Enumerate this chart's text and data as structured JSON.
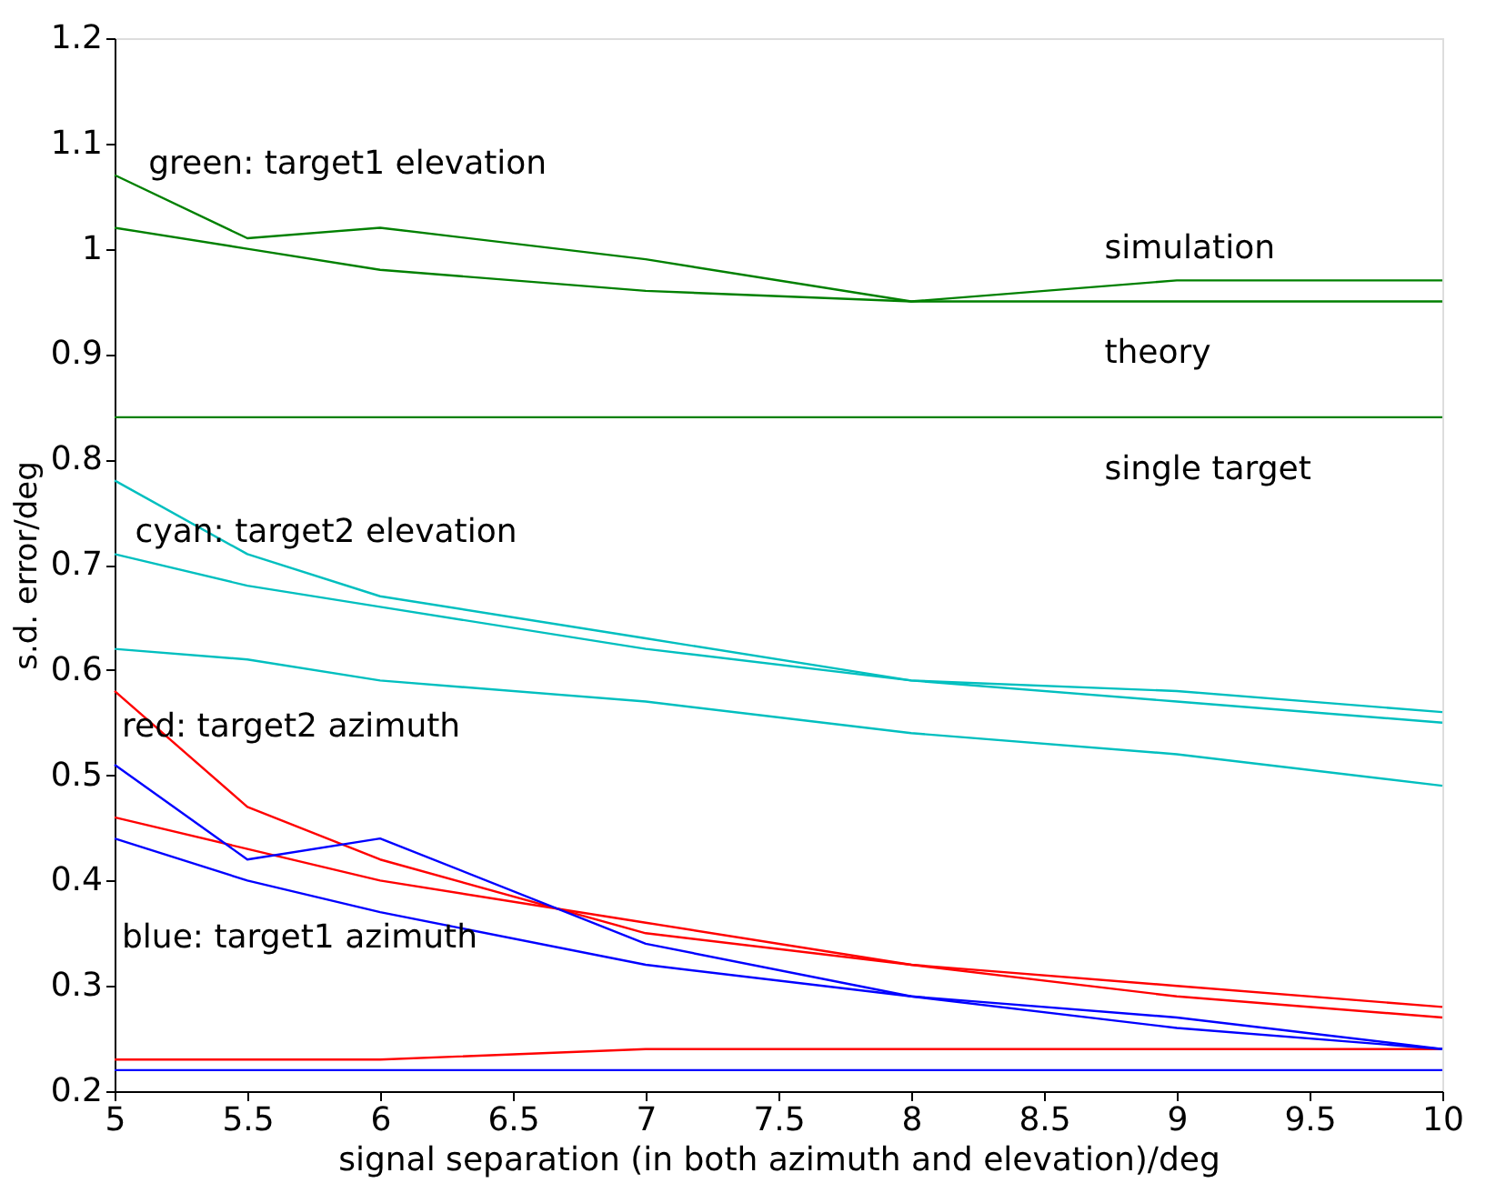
{
  "chart_data": {
    "type": "line",
    "xlabel": "signal separation (in both azimuth and elevation)/deg",
    "ylabel": "s.d. error/deg",
    "x": [
      5,
      5.5,
      6,
      7,
      8,
      9,
      10
    ],
    "series": [
      {
        "color": "#008000",
        "values": [
          1.07,
          1.01,
          1.02,
          0.99,
          0.95,
          0.97,
          0.97
        ]
      },
      {
        "color": "#008000",
        "values": [
          1.02,
          1.0,
          0.98,
          0.96,
          0.95,
          0.95,
          0.95
        ]
      },
      {
        "color": "#008000",
        "values": [
          0.84,
          0.84,
          0.84,
          0.84,
          0.84,
          0.84,
          0.84
        ]
      },
      {
        "color": "#00bfbf",
        "values": [
          0.78,
          0.71,
          0.67,
          0.63,
          0.59,
          0.58,
          0.56
        ]
      },
      {
        "color": "#00bfbf",
        "values": [
          0.71,
          0.68,
          0.66,
          0.62,
          0.59,
          0.57,
          0.55
        ]
      },
      {
        "color": "#00bfbf",
        "values": [
          0.62,
          0.61,
          0.59,
          0.57,
          0.54,
          0.52,
          0.49
        ]
      },
      {
        "color": "#ff0000",
        "values": [
          0.58,
          0.47,
          0.42,
          0.35,
          0.32,
          0.29,
          0.27
        ]
      },
      {
        "color": "#ff0000",
        "values": [
          0.46,
          0.43,
          0.4,
          0.36,
          0.32,
          0.3,
          0.28
        ]
      },
      {
        "color": "#ff0000",
        "values": [
          0.23,
          0.23,
          0.23,
          0.24,
          0.24,
          0.24,
          0.24
        ]
      },
      {
        "color": "#0000ff",
        "values": [
          0.51,
          0.42,
          0.44,
          0.34,
          0.29,
          0.27,
          0.24
        ]
      },
      {
        "color": "#0000ff",
        "values": [
          0.44,
          0.4,
          0.37,
          0.32,
          0.29,
          0.26,
          0.24
        ]
      },
      {
        "color": "#0000ff",
        "values": [
          0.22,
          0.22,
          0.22,
          0.22,
          0.22,
          0.22,
          0.22
        ]
      }
    ],
    "annotations": [
      "green: target1 elevation",
      "simulation",
      "theory",
      "single target",
      "cyan:  target2 elevation",
      "red:   target2 azimuth",
      "blue:  target1 azimuth"
    ],
    "xlim": [
      5,
      10
    ],
    "xticks": [
      5,
      5.5,
      6,
      6.5,
      7,
      7.5,
      8,
      8.5,
      9,
      9.5,
      10
    ],
    "ylim": [
      0.2,
      1.2
    ],
    "yticks": [
      0.2,
      0.3,
      0.4,
      0.5,
      0.6,
      0.7,
      0.8,
      0.9,
      1,
      1.1,
      1.2
    ],
    "grid": false,
    "legend": false,
    "marker": "none",
    "line_style": "solid"
  }
}
